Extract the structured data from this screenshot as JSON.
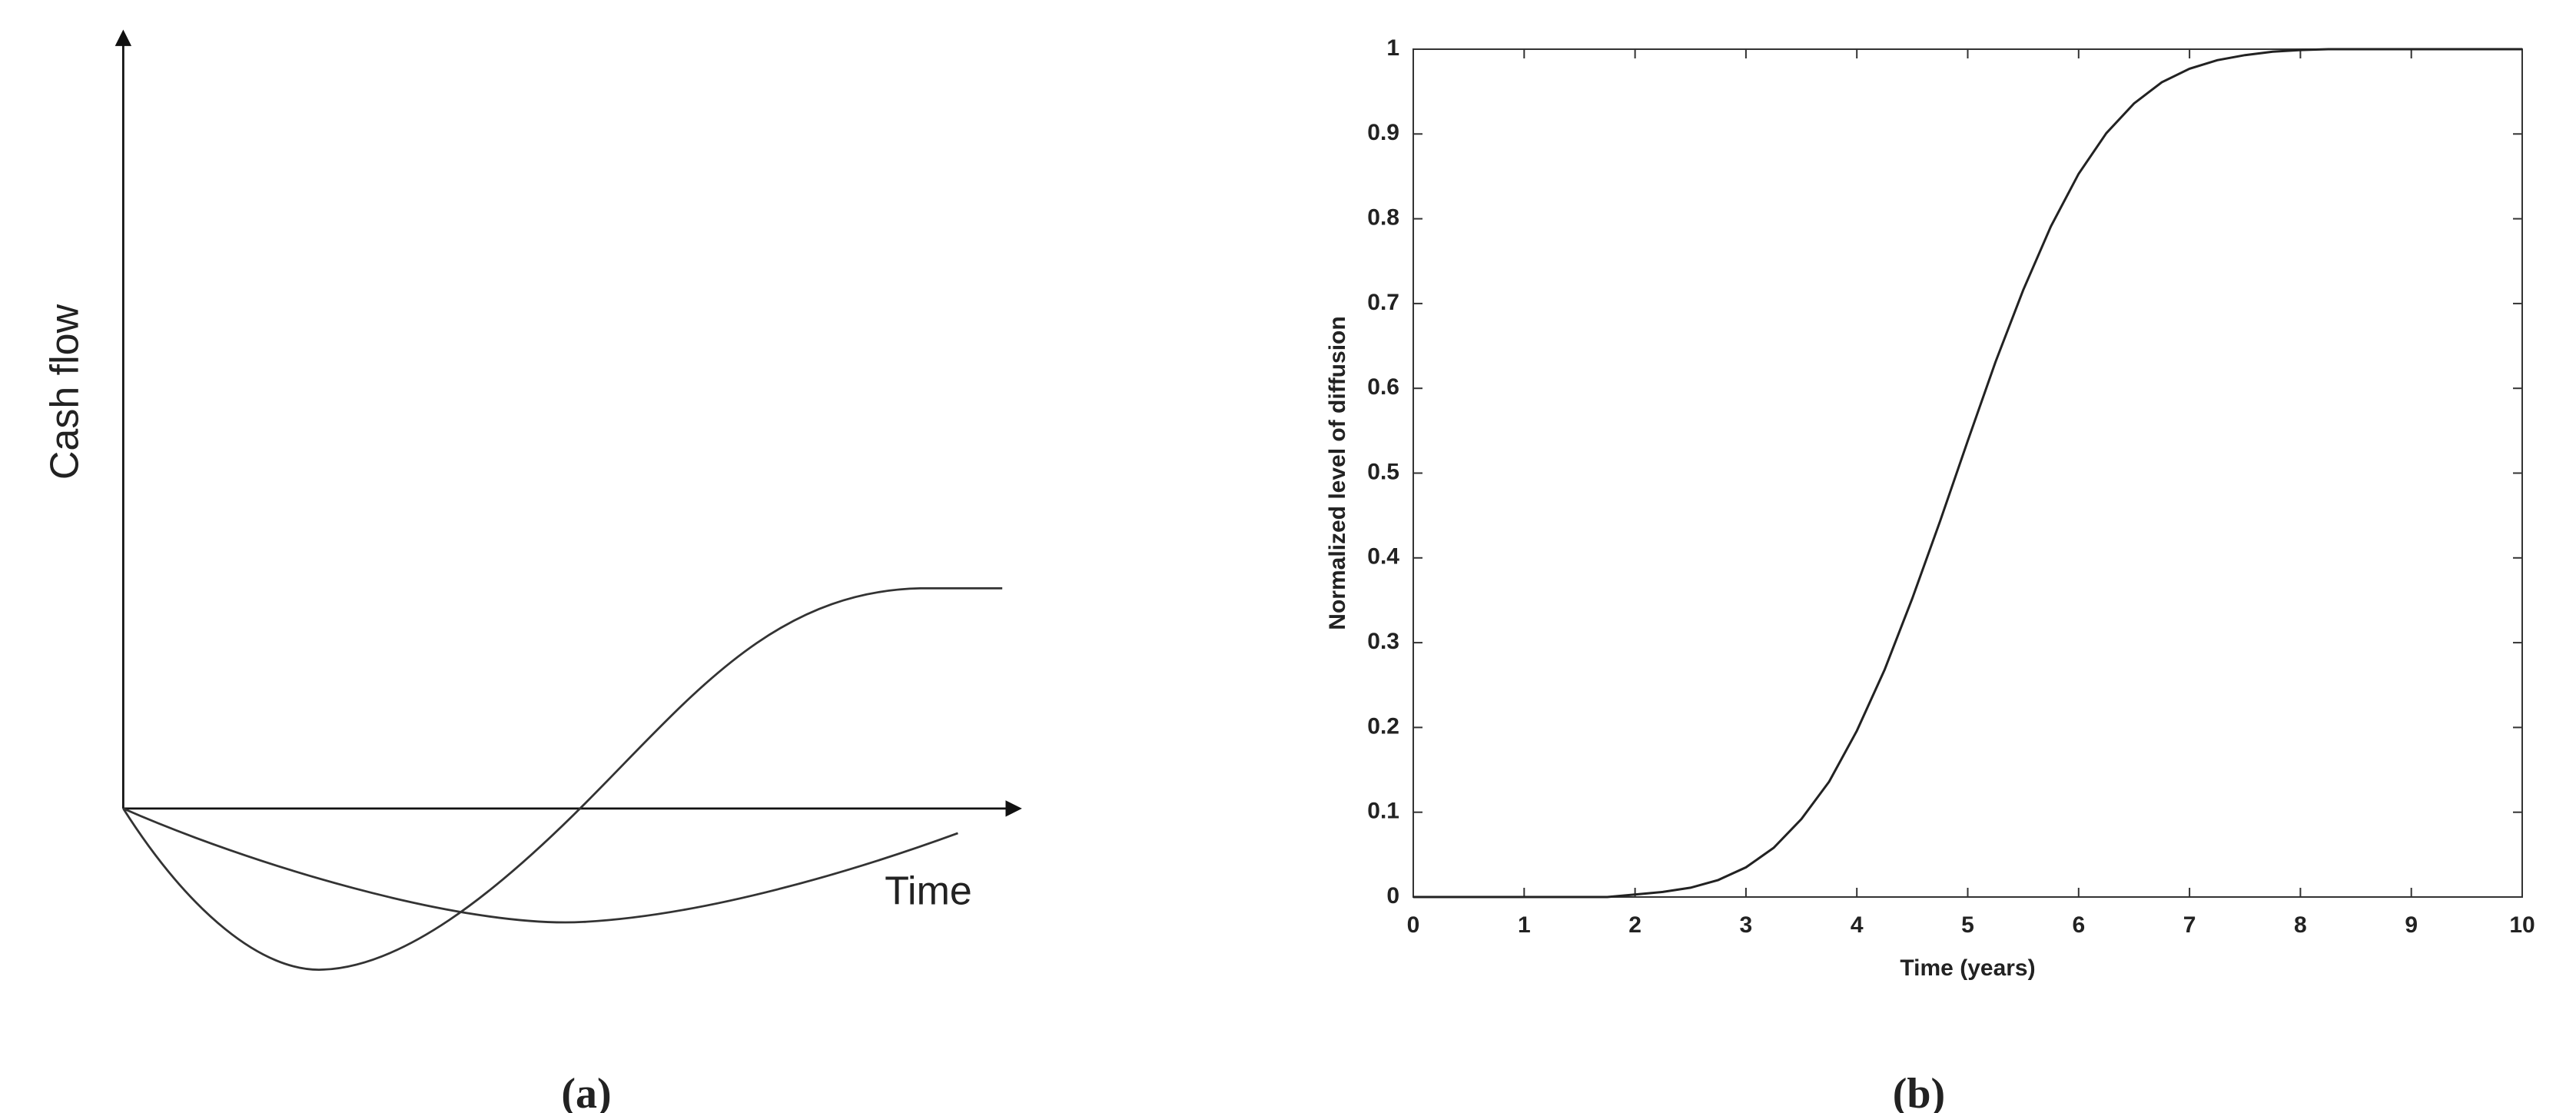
{
  "chart_data": [
    {
      "type": "line",
      "ylabel": "Cash flow",
      "xlabel": "Time",
      "caption": "(a)"
    },
    {
      "type": "line",
      "xlabel": "Time (years)",
      "ylabel": "Normalized level of diffusion",
      "caption": "(b)",
      "xlim": [
        0,
        10
      ],
      "ylim": [
        0,
        1
      ],
      "xticks": [
        0,
        1,
        2,
        3,
        4,
        5,
        6,
        7,
        8,
        9,
        10
      ],
      "yticks": [
        0,
        0.1,
        0.2,
        0.3,
        0.4,
        0.5,
        0.6,
        0.7,
        0.8,
        0.9,
        1
      ],
      "grid": false,
      "x": [
        0,
        0.25,
        0.5,
        0.75,
        1,
        1.25,
        1.5,
        1.75,
        2,
        2.25,
        2.5,
        2.75,
        3,
        3.25,
        3.5,
        3.75,
        4,
        4.25,
        4.5,
        4.75,
        5,
        5.25,
        5.5,
        5.75,
        6,
        6.25,
        6.5,
        6.75,
        7,
        7.25,
        7.5,
        7.75,
        8,
        8.25,
        8.5,
        8.75,
        9,
        9.25,
        9.5,
        9.75,
        10
      ],
      "series": [
        {
          "color": "#222222",
          "values": [
            0,
            0,
            0,
            0,
            0,
            0,
            0,
            0,
            0.003,
            0.006,
            0.011,
            0.02,
            0.035,
            0.058,
            0.092,
            0.136,
            0.196,
            0.268,
            0.352,
            0.443,
            0.538,
            0.631,
            0.716,
            0.791,
            0.853,
            0.901,
            0.936,
            0.961,
            0.977,
            0.987,
            0.993,
            0.997,
            0.999,
            1,
            1,
            1,
            1,
            1,
            1,
            1,
            1
          ]
        }
      ]
    }
  ]
}
